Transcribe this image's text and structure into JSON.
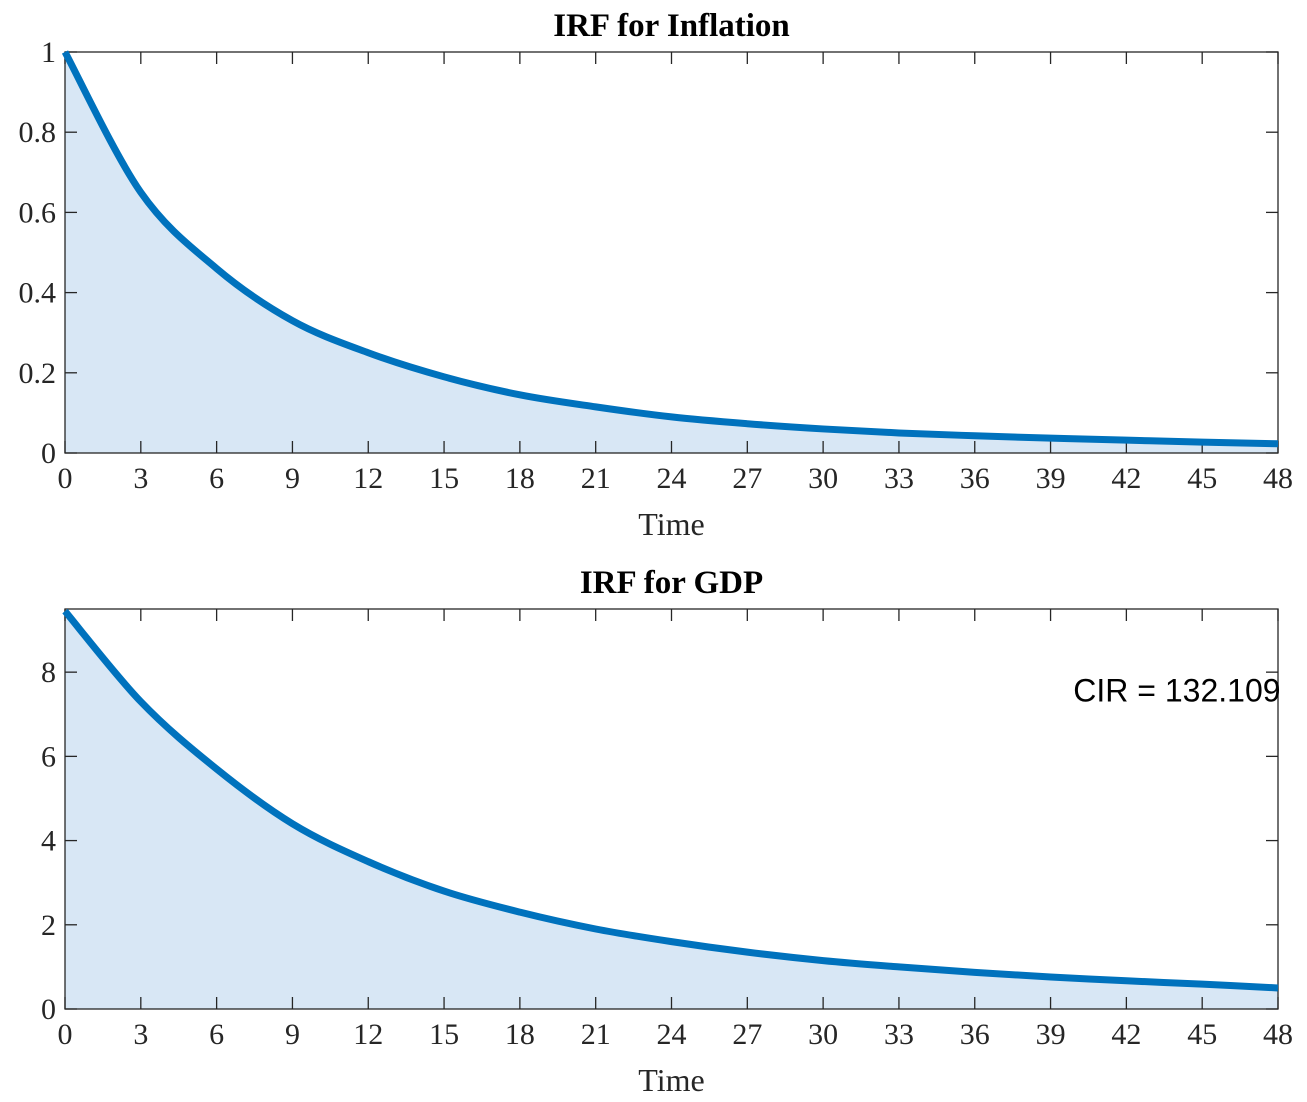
{
  "chart_data": [
    {
      "type": "area",
      "title": "IRF for Inflation",
      "xlabel": "Time",
      "ylabel": "",
      "xlim": [
        0,
        48
      ],
      "ylim": [
        0,
        1
      ],
      "x_ticks": [
        0,
        3,
        6,
        9,
        12,
        15,
        18,
        21,
        24,
        27,
        30,
        33,
        36,
        39,
        42,
        45,
        48
      ],
      "y_ticks": [
        0,
        0.2,
        0.4,
        0.6,
        0.8,
        1
      ],
      "y_tick_labels": [
        "0",
        "0.2",
        "0.4",
        "0.6",
        "0.8",
        "1"
      ],
      "grid": false,
      "series": [
        {
          "x": [
            0,
            3,
            6,
            9,
            12,
            15,
            18,
            21,
            24,
            27,
            30,
            33,
            36,
            39,
            42,
            45,
            48
          ],
          "values": [
            1.0,
            0.65,
            0.46,
            0.33,
            0.25,
            0.19,
            0.145,
            0.115,
            0.09,
            0.073,
            0.06,
            0.05,
            0.043,
            0.037,
            0.032,
            0.027,
            0.023
          ]
        }
      ],
      "annotations": []
    },
    {
      "type": "area",
      "title": "IRF for GDP",
      "xlabel": "Time",
      "ylabel": "",
      "xlim": [
        0,
        48
      ],
      "ylim": [
        0,
        9.5
      ],
      "x_ticks": [
        0,
        3,
        6,
        9,
        12,
        15,
        18,
        21,
        24,
        27,
        30,
        33,
        36,
        39,
        42,
        45,
        48
      ],
      "y_ticks": [
        0,
        2,
        4,
        6,
        8
      ],
      "y_tick_labels": [
        "0",
        "2",
        "4",
        "6",
        "8"
      ],
      "grid": false,
      "series": [
        {
          "x": [
            0,
            3,
            6,
            9,
            12,
            15,
            18,
            21,
            24,
            27,
            30,
            33,
            36,
            39,
            42,
            45,
            48
          ],
          "values": [
            9.45,
            7.3,
            5.7,
            4.4,
            3.5,
            2.8,
            2.3,
            1.9,
            1.6,
            1.35,
            1.15,
            1.0,
            0.87,
            0.76,
            0.67,
            0.59,
            0.5
          ]
        }
      ],
      "annotations": [
        {
          "text": "CIR = 132.109",
          "x": 44,
          "y": 7.3
        }
      ]
    }
  ],
  "colors": {
    "line": "#0072bd",
    "fill": "#d8e7f5",
    "axes": "#262626"
  }
}
